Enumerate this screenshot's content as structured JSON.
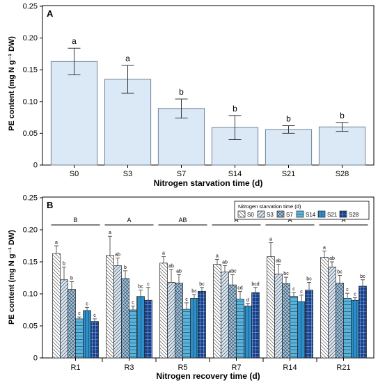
{
  "chart_data": [
    {
      "type": "bar",
      "panel_label": "A",
      "xlabel": "Nitrogen starvation time (d)",
      "ylabel": "PE content (mg N g⁻¹ DW)",
      "ylim": [
        0,
        0.25
      ],
      "yticks": [
        "0",
        "0.05",
        "0.10",
        "0.15",
        "0.20",
        "0.25"
      ],
      "categories": [
        "S0",
        "S3",
        "S7",
        "S14",
        "S21",
        "S28"
      ],
      "values": [
        0.163,
        0.135,
        0.089,
        0.059,
        0.056,
        0.06
      ],
      "errors": [
        0.021,
        0.022,
        0.015,
        0.019,
        0.006,
        0.007
      ],
      "letters": [
        "a",
        "a",
        "b",
        "b",
        "b",
        "b"
      ],
      "bar_color": "#dbe9f7",
      "bar_stroke": "#6e8298"
    },
    {
      "type": "bar",
      "panel_label": "B",
      "xlabel": "Nitrogen recovery time (d)",
      "ylabel": "PE content (mg N g⁻¹ DW)",
      "ylim": [
        0,
        0.25
      ],
      "yticks": [
        "0",
        "0.05",
        "0.10",
        "0.15",
        "0.20",
        "0.25"
      ],
      "categories": [
        "R1",
        "R3",
        "R5",
        "R7",
        "R14",
        "R21"
      ],
      "group_letters": [
        "B",
        "A",
        "AB",
        "A",
        "A",
        "A"
      ],
      "legend": {
        "title": "Nitrogen starvation time (d)",
        "placement": "top-right"
      },
      "series": [
        {
          "name": "S0",
          "fill": "#ffffff",
          "pattern": "diag-back",
          "values": [
            0.163,
            0.16,
            0.148,
            0.146,
            0.158,
            0.157
          ],
          "errors": [
            0.012,
            0.03,
            0.01,
            0.008,
            0.022,
            0.01
          ],
          "letters": [
            "a",
            "a",
            "a",
            "a",
            "a",
            "a"
          ]
        },
        {
          "name": "S3",
          "fill": "#d6e6f4",
          "pattern": "diag-fwd",
          "values": [
            0.122,
            0.144,
            0.118,
            0.134,
            0.131,
            0.142
          ],
          "errors": [
            0.02,
            0.012,
            0.02,
            0.01,
            0.015,
            0.008
          ],
          "letters": [
            "b",
            "ab",
            "ab",
            "ab",
            "ab",
            "ab"
          ]
        },
        {
          "name": "S7",
          "fill": "#9cc6e6",
          "pattern": "cross",
          "values": [
            0.107,
            0.124,
            0.117,
            0.114,
            0.116,
            0.117
          ],
          "errors": [
            0.012,
            0.012,
            0.013,
            0.016,
            0.01,
            0.012
          ],
          "letters": [
            "b",
            "b",
            "ab",
            "abc",
            "bc",
            "bc"
          ]
        },
        {
          "name": "S14",
          "fill": "#55b5e0",
          "pattern": "horiz",
          "values": [
            0.061,
            0.075,
            0.076,
            0.092,
            0.096,
            0.093
          ],
          "errors": [
            0.003,
            0.006,
            0.01,
            0.012,
            0.006,
            0.008
          ],
          "letters": [
            "c",
            "c",
            "c",
            "cd",
            "c",
            "c"
          ]
        },
        {
          "name": "S21",
          "fill": "#2b8fcc",
          "pattern": "vert",
          "values": [
            0.074,
            0.096,
            0.093,
            0.081,
            0.088,
            0.09
          ],
          "errors": [
            0.005,
            0.01,
            0.006,
            0.004,
            0.01,
            0.004
          ],
          "letters": [
            "c",
            "bc",
            "bc",
            "d",
            "c",
            "c"
          ]
        },
        {
          "name": "S28",
          "fill": "#163f8c",
          "pattern": "grid",
          "values": [
            0.057,
            0.09,
            0.104,
            0.102,
            0.106,
            0.112
          ],
          "errors": [
            0.004,
            0.02,
            0.006,
            0.008,
            0.012,
            0.01
          ],
          "letters": [
            "c",
            "c",
            "bc",
            "bcd",
            "bc",
            "bc"
          ]
        }
      ]
    }
  ]
}
